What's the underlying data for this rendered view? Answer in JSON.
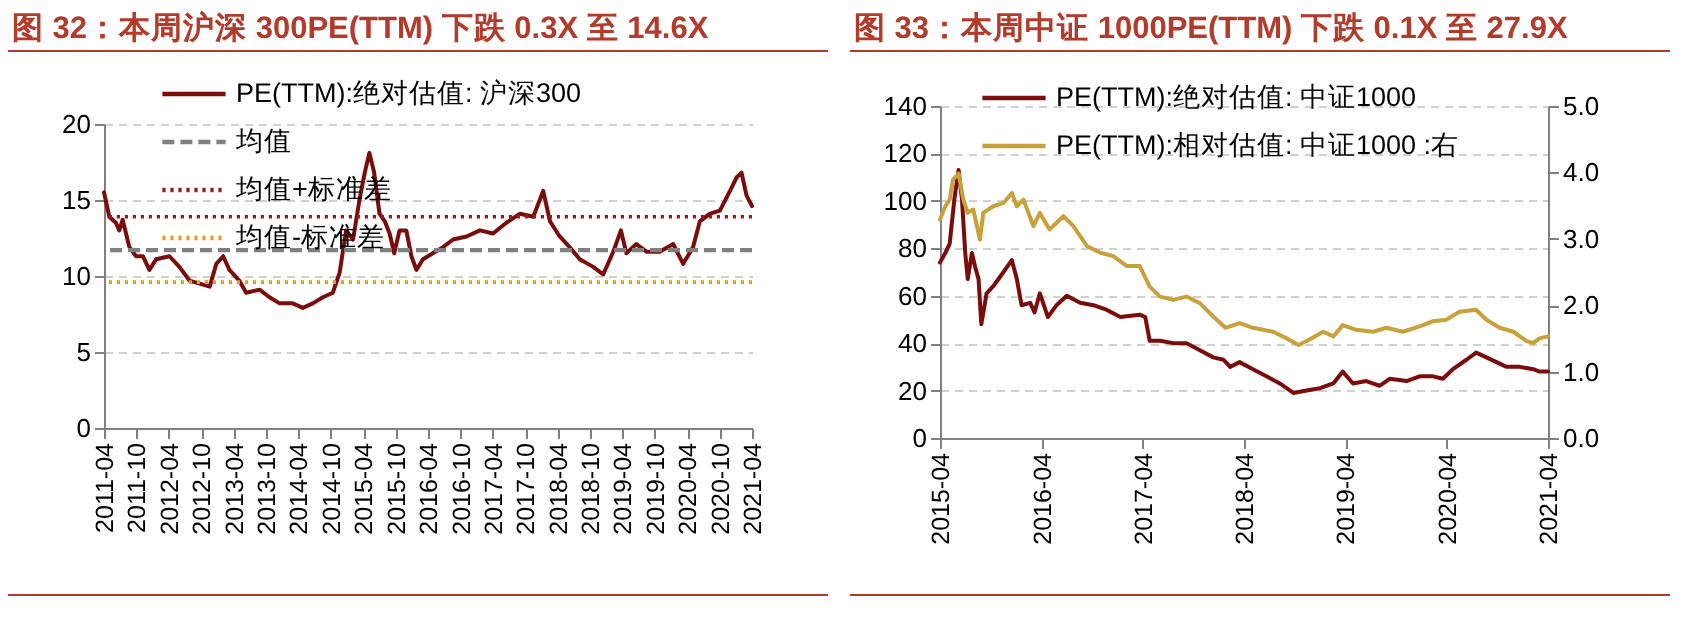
{
  "chart_data": [
    {
      "type": "line",
      "title": "图 32：本周沪深 300PE(TTM) 下跌 0.3X 至 14.6X",
      "series": [
        {
          "name": "PE(TTM):绝对估值: 沪深300",
          "color": "#7b0c0c",
          "x": [
            "2011-04-01",
            "2011-05-01",
            "2011-06-07",
            "2011-06-26",
            "2011-07-15",
            "2011-08-22",
            "2011-09-29",
            "2011-11-06",
            "2011-12-13",
            "2012-01-20",
            "2012-04-04",
            "2012-05-30",
            "2012-07-26",
            "2012-09-21",
            "2012-11-17",
            "2012-12-24",
            "2013-02-01",
            "2013-03-08",
            "2013-05-03",
            "2013-06-10",
            "2013-08-25",
            "2013-10-20",
            "2013-12-16",
            "2014-02-28",
            "2014-04-26",
            "2014-06-21",
            "2014-08-17",
            "2014-10-12",
            "2014-11-19",
            "2014-12-26",
            "2015-02-03",
            "2015-03-11",
            "2015-04-10",
            "2015-05-06",
            "2015-06-02",
            "2015-07-02",
            "2015-08-01",
            "2015-08-28",
            "2015-09-23",
            "2015-10-23",
            "2015-11-30",
            "2015-12-29",
            "2016-01-26",
            "2016-03-03",
            "2016-04-28",
            "2016-06-24",
            "2016-08-20",
            "2016-11-04",
            "2017-01-18",
            "2017-04-02",
            "2017-06-16",
            "2017-09-01",
            "2017-11-15",
            "2018-01-10",
            "2018-02-17",
            "2018-04-13",
            "2018-06-08",
            "2018-08-04",
            "2018-10-19",
            "2018-12-14",
            "2019-02-09",
            "2019-03-24",
            "2019-04-24",
            "2019-06-19",
            "2019-08-15",
            "2019-10-29",
            "2020-01-13",
            "2020-03-09",
            "2020-05-04",
            "2020-06-11",
            "2020-08-07",
            "2020-10-02",
            "2020-11-28",
            "2021-01-05",
            "2021-02-01",
            "2021-03-01",
            "2021-04-01"
          ],
          "values": [
            15.5,
            13.9,
            13.5,
            13.0,
            13.7,
            11.9,
            11.3,
            11.3,
            10.4,
            11.1,
            11.3,
            10.6,
            9.7,
            9.5,
            9.3,
            10.8,
            11.3,
            10.4,
            9.7,
            8.9,
            9.1,
            8.6,
            8.2,
            8.2,
            7.9,
            8.2,
            8.6,
            8.9,
            10.2,
            13.0,
            12.4,
            15.0,
            16.8,
            18.1,
            16.8,
            14.1,
            13.6,
            12.8,
            11.5,
            13.0,
            13.0,
            11.3,
            10.4,
            11.1,
            11.5,
            11.9,
            12.4,
            12.6,
            13.0,
            12.8,
            13.5,
            14.1,
            13.9,
            15.6,
            13.6,
            12.6,
            11.9,
            11.1,
            10.6,
            10.1,
            11.6,
            13.0,
            11.5,
            12.1,
            11.6,
            11.6,
            12.1,
            10.8,
            11.9,
            13.6,
            14.1,
            14.3,
            15.6,
            16.5,
            16.8,
            15.3,
            14.6
          ]
        }
      ],
      "ref_lines": [
        {
          "axis": "y",
          "value": 11.7,
          "label": "均值",
          "color": "#808080",
          "line_style": "dashed"
        },
        {
          "axis": "y",
          "value": 13.9,
          "label": "均值+标准差",
          "color": "#9e1b1b",
          "line_style": "dotted"
        },
        {
          "axis": "y",
          "value": 9.6,
          "label": "均值-标准差",
          "color": "#d9a520",
          "line_style": "dotted"
        }
      ],
      "xlim": [
        "2011-04",
        "2021-04"
      ],
      "xticks": [
        "2011-04",
        "2011-10",
        "2012-04",
        "2012-10",
        "2013-04",
        "2013-10",
        "2014-04",
        "2014-10",
        "2015-04",
        "2015-10",
        "2016-04",
        "2016-10",
        "2017-04",
        "2017-10",
        "2018-04",
        "2018-10",
        "2019-04",
        "2019-10",
        "2020-04",
        "2020-10",
        "2021-04"
      ],
      "ylim": [
        0,
        20
      ],
      "yticks": [
        0,
        5,
        10,
        15,
        20
      ],
      "grid": "y",
      "legend": "top left"
    },
    {
      "type": "line",
      "title": "图 33：本周中证 1000PE(TTM) 下跌 0.1X 至 27.9X",
      "series": [
        {
          "name": "PE(TTM):绝对估值: 中证1000",
          "color": "#7b0c0c",
          "x": [
            "2015-04-01",
            "2015-04-20",
            "2015-05-06",
            "2015-05-23",
            "2015-06-07",
            "2015-06-19",
            "2015-07-01",
            "2015-07-10",
            "2015-07-25",
            "2015-08-06",
            "2015-08-18",
            "2015-08-28",
            "2015-09-16",
            "2015-10-10",
            "2015-11-16",
            "2015-12-16",
            "2016-01-03",
            "2016-01-20",
            "2016-02-20",
            "2016-03-07",
            "2016-03-26",
            "2016-04-24",
            "2016-05-25",
            "2016-07-01",
            "2016-08-18",
            "2016-10-05",
            "2016-11-23",
            "2017-01-10",
            "2017-03-21",
            "2017-04-10",
            "2017-04-26",
            "2017-06-02",
            "2017-07-20",
            "2017-09-06",
            "2017-10-24",
            "2017-12-11",
            "2018-01-17",
            "2018-02-10",
            "2018-03-16",
            "2018-05-03",
            "2018-06-21",
            "2018-08-08",
            "2018-09-26",
            "2018-11-13",
            "2018-12-31",
            "2019-02-17",
            "2019-03-23",
            "2019-04-29",
            "2019-06-16",
            "2019-08-03",
            "2019-09-09",
            "2019-11-08",
            "2019-12-25",
            "2020-02-12",
            "2020-03-18",
            "2020-04-23",
            "2020-06-11",
            "2020-07-16",
            "2020-08-22",
            "2020-09-27",
            "2020-11-03",
            "2020-12-20",
            "2021-02-07",
            "2021-03-01",
            "2021-04-01"
          ],
          "values": [
            74,
            78,
            82,
            101,
            113,
            101,
            78,
            67,
            78,
            72,
            67,
            48,
            61,
            64,
            70,
            75,
            67,
            56,
            57,
            53,
            61,
            51,
            56,
            60,
            57,
            56,
            54,
            51,
            52,
            51,
            41,
            41,
            40,
            40,
            37,
            34,
            33,
            30,
            32,
            29,
            26,
            23,
            19,
            20,
            21,
            23,
            28,
            23,
            24,
            22,
            25,
            24,
            26,
            26,
            25,
            29,
            33,
            36,
            34,
            32,
            30,
            30,
            29,
            28,
            28
          ]
        },
        {
          "name": "PE(TTM):相对估值: 中证1000 :右",
          "color": "#c9a13b",
          "axis": "y2",
          "x": [
            "2015-04-01",
            "2015-04-20",
            "2015-05-06",
            "2015-05-18",
            "2015-06-07",
            "2015-06-24",
            "2015-07-10",
            "2015-07-30",
            "2015-08-23",
            "2015-09-04",
            "2015-10-10",
            "2015-11-16",
            "2015-12-16",
            "2016-01-03",
            "2016-01-27",
            "2016-03-03",
            "2016-03-26",
            "2016-04-30",
            "2016-06-19",
            "2016-07-25",
            "2016-09-12",
            "2016-10-30",
            "2016-12-16",
            "2017-02-03",
            "2017-03-21",
            "2017-04-26",
            "2017-06-02",
            "2017-07-20",
            "2017-09-06",
            "2017-10-24",
            "2017-12-11",
            "2018-01-24",
            "2018-03-16",
            "2018-05-03",
            "2018-07-15",
            "2018-09-02",
            "2018-10-15",
            "2018-11-13",
            "2019-01-12",
            "2019-02-17",
            "2019-03-23",
            "2019-05-10",
            "2019-07-10",
            "2019-08-27",
            "2019-10-26",
            "2019-12-25",
            "2020-02-12",
            "2020-03-30",
            "2020-05-17",
            "2020-07-16",
            "2020-08-22",
            "2020-10-09",
            "2020-11-27",
            "2021-01-14",
            "2021-02-07",
            "2021-03-01",
            "2021-04-01"
          ],
          "values": [
            3.29,
            3.49,
            3.59,
            3.89,
            3.98,
            3.59,
            3.39,
            3.44,
            2.99,
            3.39,
            3.49,
            3.54,
            3.69,
            3.49,
            3.59,
            3.19,
            3.39,
            3.14,
            3.34,
            3.19,
            2.89,
            2.79,
            2.74,
            2.59,
            2.59,
            2.28,
            2.13,
            2.08,
            2.13,
            2.03,
            1.83,
            1.66,
            1.73,
            1.66,
            1.6,
            1.5,
            1.4,
            1.46,
            1.6,
            1.53,
            1.7,
            1.63,
            1.6,
            1.66,
            1.6,
            1.68,
            1.76,
            1.78,
            1.9,
            1.93,
            1.78,
            1.66,
            1.6,
            1.46,
            1.43,
            1.5,
            1.53
          ]
        }
      ],
      "xlim": [
        "2015-04",
        "2021-04"
      ],
      "xticks": [
        "2015-04",
        "2016-04",
        "2017-04",
        "2018-04",
        "2019-04",
        "2020-04",
        "2021-04"
      ],
      "ylim": [
        0,
        140
      ],
      "yticks": [
        0,
        20,
        40,
        60,
        80,
        100,
        120,
        140
      ],
      "y2lim": [
        0,
        5
      ],
      "y2ticks": [
        {
          "value": 0,
          "label": "0.0"
        },
        {
          "value": 1,
          "label": "1.0"
        },
        {
          "value": 2,
          "label": "2.0"
        },
        {
          "value": 3,
          "label": "3.0"
        },
        {
          "value": 4,
          "label": "4.0"
        },
        {
          "value": 5,
          "label": "5.0"
        }
      ],
      "grid": "y",
      "legend": "top"
    }
  ]
}
